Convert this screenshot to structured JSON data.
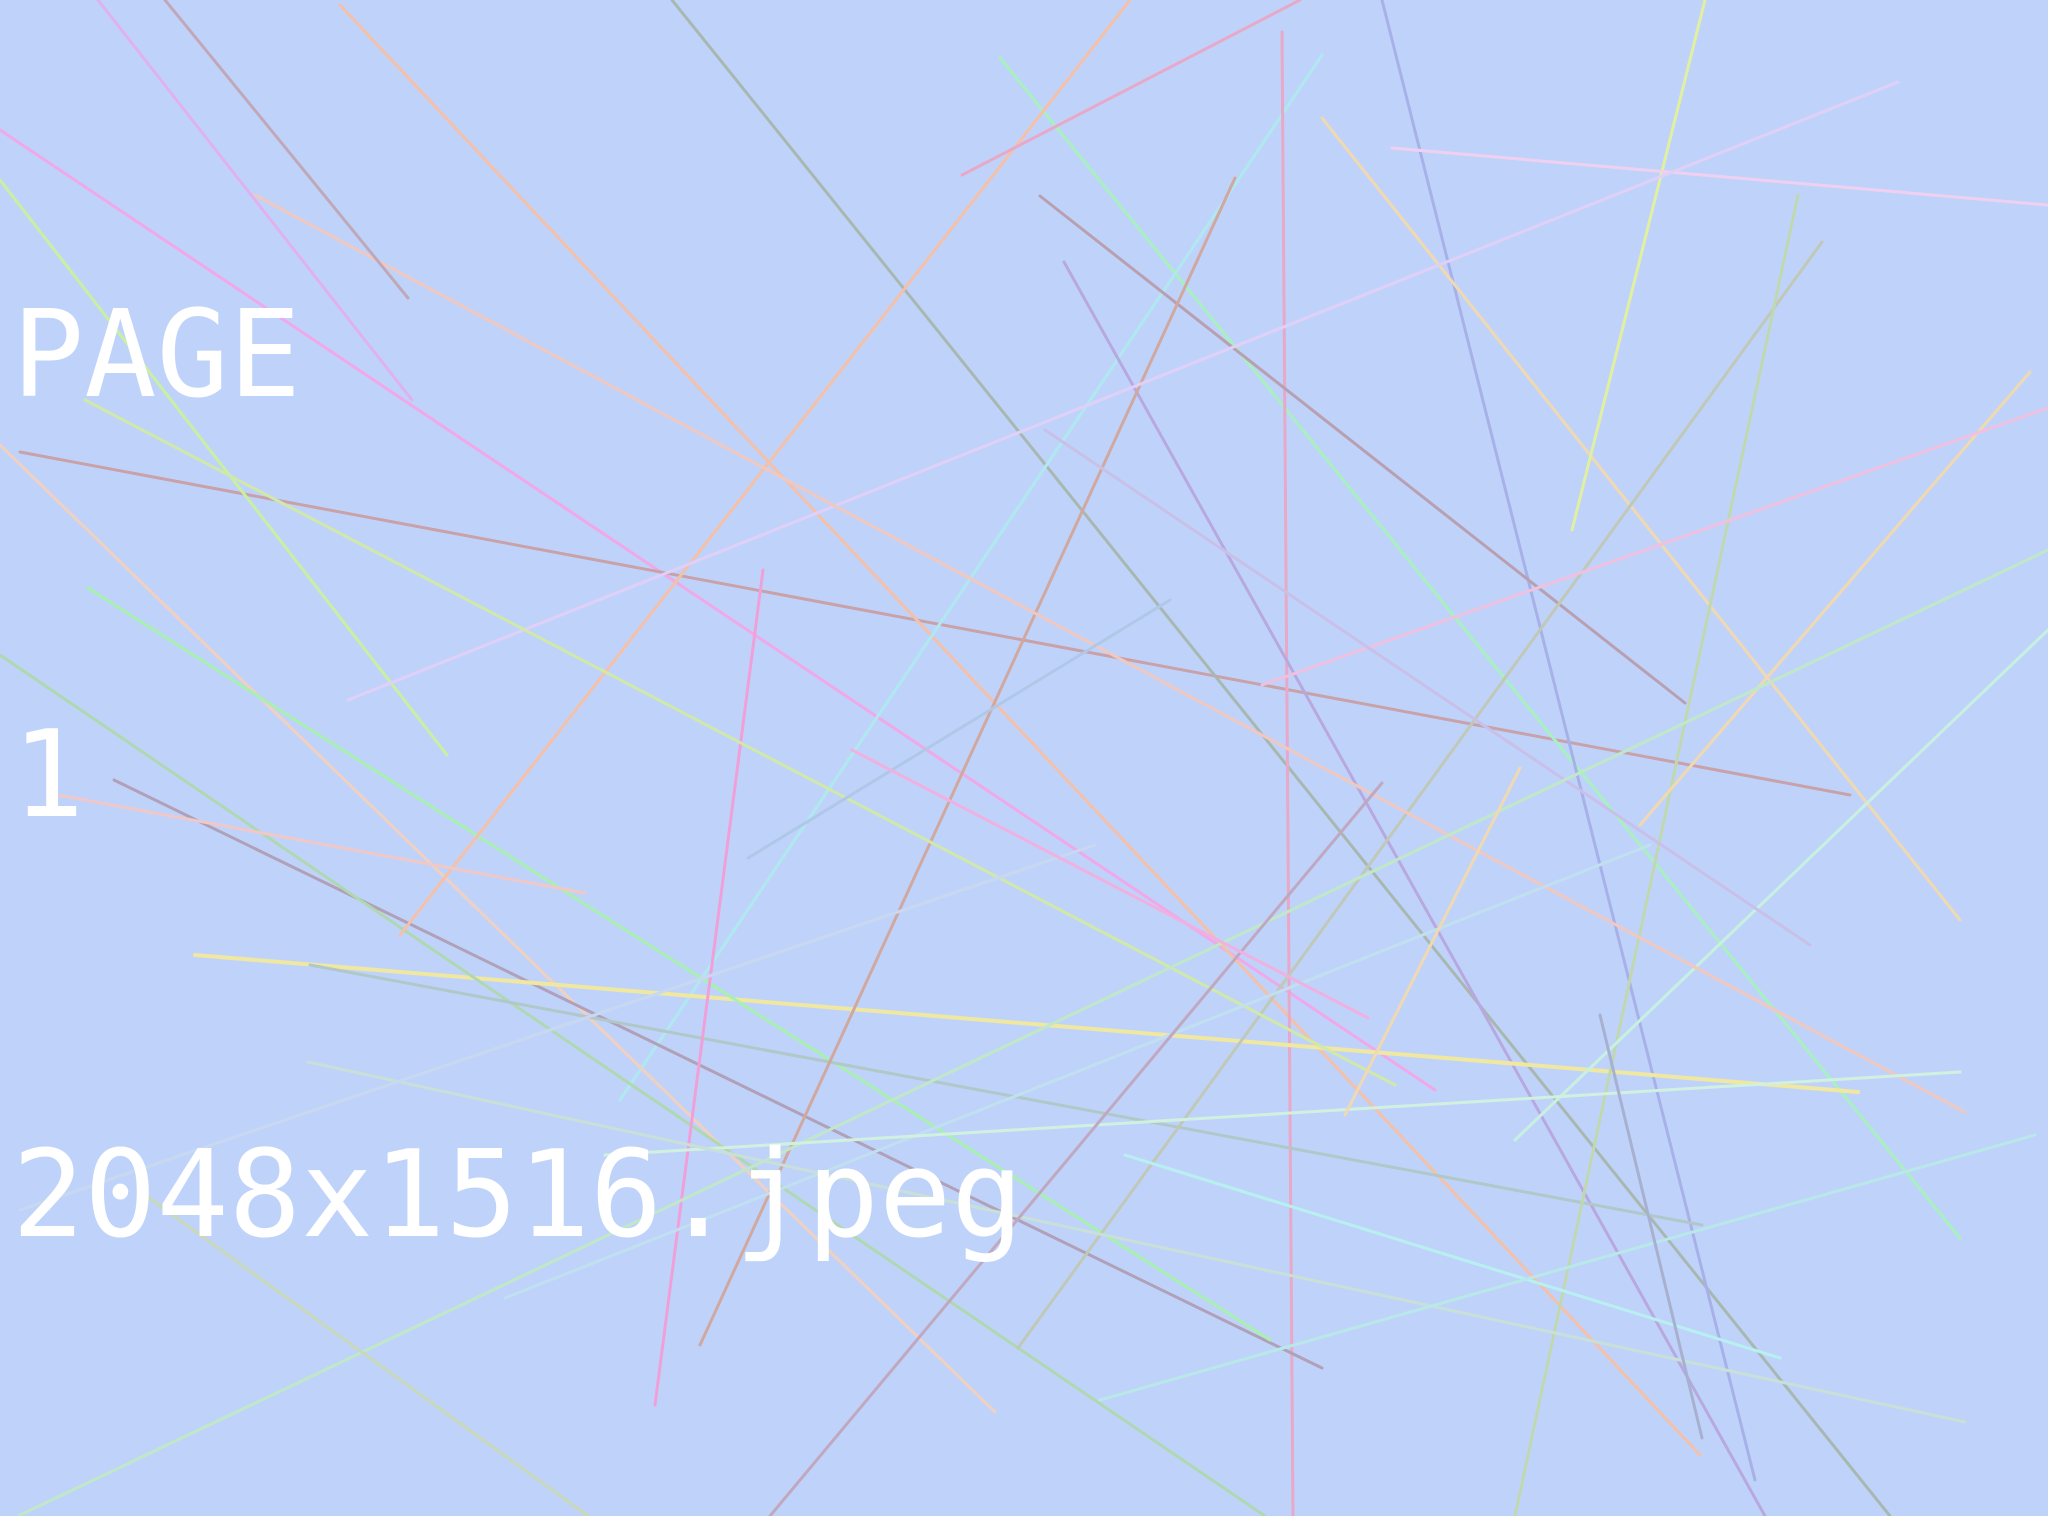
{
  "background_color": "#bfd3fa",
  "caption": {
    "line1": "PAGE",
    "line2": "1",
    "line3": "2048x1516.jpeg",
    "color": "#ffffff"
  },
  "line_colors": [
    "#f0a8e8",
    "#c8a2a8",
    "#f5c0a8",
    "#a8b8b0",
    "#a8f0c0",
    "#d8f0a0",
    "#b0e8f0",
    "#f0c8e0",
    "#f0d8b0",
    "#e0b0f0",
    "#a8a8e8",
    "#c8b0c0",
    "#c0d8b0",
    "#f0e8a0",
    "#b0f0e0",
    "#e8a8c8"
  ]
}
